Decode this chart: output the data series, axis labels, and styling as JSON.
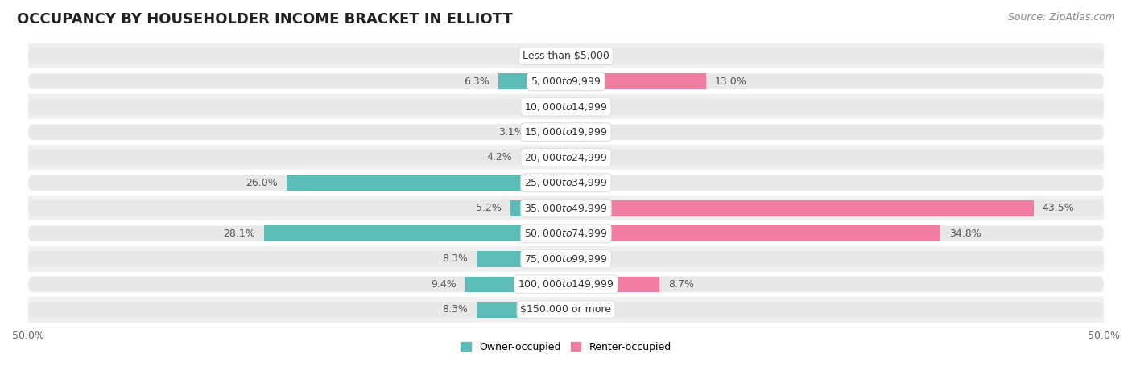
{
  "title": "OCCUPANCY BY HOUSEHOLDER INCOME BRACKET IN ELLIOTT",
  "source": "Source: ZipAtlas.com",
  "categories": [
    "Less than $5,000",
    "$5,000 to $9,999",
    "$10,000 to $14,999",
    "$15,000 to $19,999",
    "$20,000 to $24,999",
    "$25,000 to $34,999",
    "$35,000 to $49,999",
    "$50,000 to $74,999",
    "$75,000 to $99,999",
    "$100,000 to $149,999",
    "$150,000 or more"
  ],
  "owner_values": [
    0.0,
    6.3,
    1.0,
    3.1,
    4.2,
    26.0,
    5.2,
    28.1,
    8.3,
    9.4,
    8.3
  ],
  "renter_values": [
    0.0,
    13.0,
    0.0,
    0.0,
    0.0,
    0.0,
    43.5,
    34.8,
    0.0,
    8.7,
    0.0
  ],
  "owner_color": "#5bbcb8",
  "renter_color": "#f07ca0",
  "owner_label": "Owner-occupied",
  "renter_label": "Renter-occupied",
  "xlim": [
    -50,
    50
  ],
  "bar_height": 0.62,
  "pill_bg": "#e8e8e8",
  "row_bg_even": "#f0f0f0",
  "row_bg_odd": "#ffffff",
  "title_fontsize": 13,
  "source_fontsize": 9,
  "label_fontsize": 9,
  "category_fontsize": 9
}
